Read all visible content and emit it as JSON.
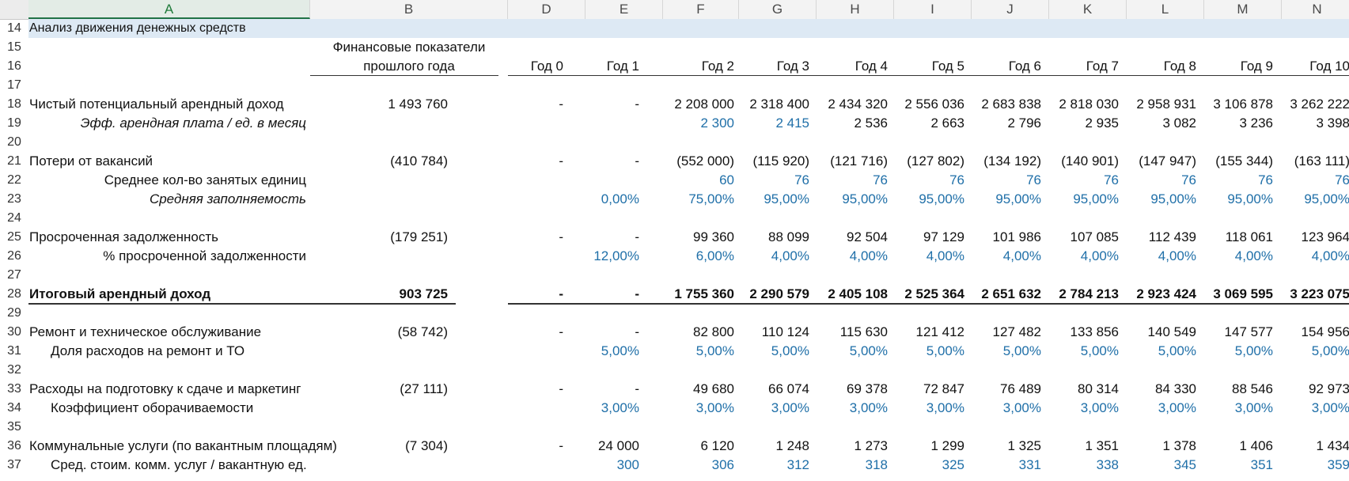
{
  "column_headers": [
    "A",
    "B",
    "D",
    "E",
    "F",
    "G",
    "H",
    "I",
    "J",
    "K",
    "L",
    "M",
    "N"
  ],
  "row_numbers": [
    "14",
    "15",
    "16",
    "17",
    "18",
    "19",
    "20",
    "21",
    "22",
    "23",
    "24",
    "25",
    "26",
    "27",
    "28",
    "29",
    "30",
    "31",
    "32",
    "33",
    "34",
    "35",
    "36",
    "37"
  ],
  "section_title": "Анализ движения денежных средств",
  "prev_year_header": [
    "Финансовые показатели",
    "прошлого года"
  ],
  "year_headers": [
    "Год 0",
    "Год 1",
    "Год 2",
    "Год 3",
    "Год 4",
    "Год 5",
    "Год 6",
    "Год 7",
    "Год 8",
    "Год 9",
    "Год 10"
  ],
  "rows": [
    {
      "row": "18",
      "label": "Чистый потенциальный арендный доход",
      "style": "plain",
      "b": "1 493 760",
      "values": [
        "-",
        "-",
        "2 208 000",
        "2 318 400",
        "2 434 320",
        "2 556 036",
        "2 683 838",
        "2 818 030",
        "2 958 931",
        "3 106 878",
        "3 262 222"
      ]
    },
    {
      "row": "19",
      "label": "Эфф. арендная плата / ед. в месяц",
      "style": "italic-indent",
      "b": "",
      "values": [
        "",
        "",
        "2 300",
        "2 415",
        "2 536",
        "2 663",
        "2 796",
        "2 935",
        "3 082",
        "3 236",
        "3 398"
      ],
      "blue_cols": [
        2,
        3
      ]
    },
    {
      "row": "21",
      "label": "Потери от вакансий",
      "style": "plain",
      "b": "(410 784)",
      "values": [
        "-",
        "-",
        "(552 000)",
        "(115 920)",
        "(121 716)",
        "(127 802)",
        "(134 192)",
        "(140 901)",
        "(147 947)",
        "(155 344)",
        "(163 111)"
      ]
    },
    {
      "row": "22",
      "label": "Среднее кол-во занятых единиц",
      "style": "indent-right",
      "b": "",
      "values": [
        "",
        "",
        "60",
        "76",
        "76",
        "76",
        "76",
        "76",
        "76",
        "76",
        "76"
      ],
      "blue_cols": [
        2,
        3,
        4,
        5,
        6,
        7,
        8,
        9,
        10
      ]
    },
    {
      "row": "23",
      "label": "Средняя заполняемость",
      "style": "italic-indent",
      "b": "",
      "values": [
        "",
        "0,00%",
        "75,00%",
        "95,00%",
        "95,00%",
        "95,00%",
        "95,00%",
        "95,00%",
        "95,00%",
        "95,00%",
        "95,00%"
      ],
      "blue_cols": [
        1,
        2,
        3,
        4,
        5,
        6,
        7,
        8,
        9,
        10
      ]
    },
    {
      "row": "25",
      "label": "Просроченная задолженность",
      "style": "plain",
      "b": "(179 251)",
      "values": [
        "-",
        "-",
        "99 360",
        "88 099",
        "92 504",
        "97 129",
        "101 986",
        "107 085",
        "112 439",
        "118 061",
        "123 964"
      ]
    },
    {
      "row": "26",
      "label": "% просроченной задолженности",
      "style": "indent-right",
      "b": "",
      "values": [
        "",
        "12,00%",
        "6,00%",
        "4,00%",
        "4,00%",
        "4,00%",
        "4,00%",
        "4,00%",
        "4,00%",
        "4,00%",
        "4,00%"
      ],
      "blue_cols": [
        1,
        2,
        3,
        4,
        5,
        6,
        7,
        8,
        9,
        10
      ]
    },
    {
      "row": "28",
      "label": "Итоговый арендный доход",
      "style": "bold",
      "b": "903 725",
      "values": [
        "-",
        "-",
        "1 755 360",
        "2 290 579",
        "2 405 108",
        "2 525 364",
        "2 651 632",
        "2 784 213",
        "2 923 424",
        "3 069 595",
        "3 223 075"
      ]
    },
    {
      "row": "30",
      "label": "Ремонт и техническое обслуживание",
      "style": "plain",
      "b": "(58 742)",
      "values": [
        "-",
        "-",
        "82 800",
        "110 124",
        "115 630",
        "121 412",
        "127 482",
        "133 856",
        "140 549",
        "147 577",
        "154 956"
      ]
    },
    {
      "row": "31",
      "label": "Доля расходов на ремонт и ТО",
      "style": "indent",
      "b": "",
      "values": [
        "",
        "5,00%",
        "5,00%",
        "5,00%",
        "5,00%",
        "5,00%",
        "5,00%",
        "5,00%",
        "5,00%",
        "5,00%",
        "5,00%"
      ],
      "blue_cols": [
        1,
        2,
        3,
        4,
        5,
        6,
        7,
        8,
        9,
        10
      ]
    },
    {
      "row": "33",
      "label": "Расходы на подготовку к сдаче и маркетинг",
      "style": "plain",
      "b": "(27 111)",
      "values": [
        "-",
        "-",
        "49 680",
        "66 074",
        "69 378",
        "72 847",
        "76 489",
        "80 314",
        "84 330",
        "88 546",
        "92 973"
      ]
    },
    {
      "row": "34",
      "label": "Коэффициент оборачиваемости",
      "style": "indent",
      "b": "",
      "values": [
        "",
        "3,00%",
        "3,00%",
        "3,00%",
        "3,00%",
        "3,00%",
        "3,00%",
        "3,00%",
        "3,00%",
        "3,00%",
        "3,00%"
      ],
      "blue_cols": [
        1,
        2,
        3,
        4,
        5,
        6,
        7,
        8,
        9,
        10
      ]
    },
    {
      "row": "36",
      "label": "Коммунальные услуги (по вакантным площадям)",
      "style": "plain",
      "b": "(7 304)",
      "values": [
        "-",
        "24 000",
        "6 120",
        "1 248",
        "1 273",
        "1 299",
        "1 325",
        "1 351",
        "1 378",
        "1 406",
        "1 434"
      ]
    },
    {
      "row": "37",
      "label": "Сред. стоим. комм. услуг / вакантную ед.",
      "style": "indent",
      "b": "",
      "values": [
        "",
        "300",
        "306",
        "312",
        "318",
        "325",
        "331",
        "338",
        "345",
        "351",
        "359"
      ],
      "blue_cols": [
        1,
        2,
        3,
        4,
        5,
        6,
        7,
        8,
        9,
        10
      ]
    }
  ]
}
